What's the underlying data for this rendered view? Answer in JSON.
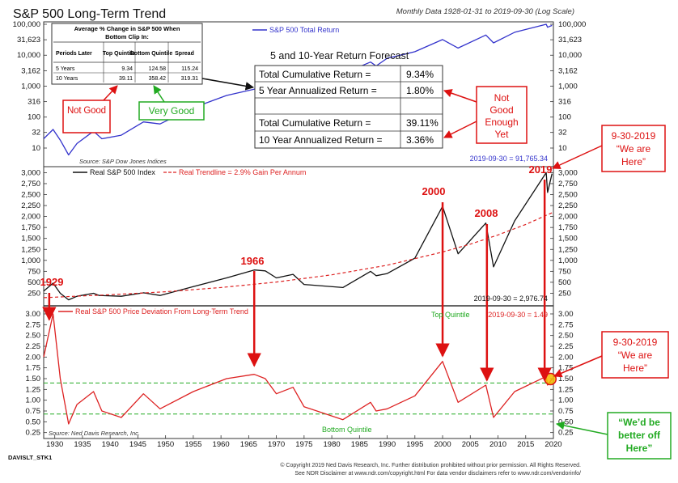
{
  "header": {
    "title": "S&P 500 Long-Term Trend",
    "subtitle": "Monthly Data 1928-01-31 to 2019-09-30 (Log Scale)"
  },
  "chart_data": [
    {
      "type": "line",
      "title": "S&P 500 Total Return",
      "scale": "log",
      "ylim": [
        3,
        100000
      ],
      "ticks": [
        "100,000",
        "31,623",
        "10,000",
        "3,162",
        "1,000",
        "316",
        "100",
        "32",
        "10"
      ],
      "tick_values": [
        100000,
        31623,
        10000,
        3162,
        1000,
        316,
        100,
        32,
        10
      ],
      "series": [
        {
          "name": "S&P 500 Total Return",
          "color": "#3333cc",
          "x": [
            1928,
            1929.7,
            1931,
            1932.5,
            1934,
            1937,
            1938.5,
            1942,
            1946,
            1949,
            1955,
            1961,
            1966,
            1968,
            1970,
            1973,
            1975,
            1980,
            1987,
            1988,
            1990,
            1995,
            2000,
            2002.8,
            2007.8,
            2009.2,
            2013,
            2018.7,
            2018.95,
            2019.75
          ],
          "values": [
            20,
            40,
            18,
            6,
            14,
            35,
            20,
            26,
            70,
            60,
            200,
            500,
            800,
            800,
            700,
            1400,
            900,
            1800,
            6000,
            4500,
            8000,
            13000,
            32000,
            17000,
            45000,
            25000,
            55000,
            100000,
            80000,
            91765
          ]
        }
      ],
      "source": "Source: S&P Dow Jones Indices",
      "end_label": "2019-09-30 = 91,765.34"
    },
    {
      "type": "line",
      "title": "Real S&P 500 Index",
      "ylim": [
        0,
        3100
      ],
      "ticks": [
        "3,000",
        "2,750",
        "2,500",
        "2,250",
        "2,000",
        "1,750",
        "1,500",
        "1,250",
        "1,000",
        "750",
        "500",
        "250"
      ],
      "tick_values": [
        3000,
        2750,
        2500,
        2250,
        2000,
        1750,
        1500,
        1250,
        1000,
        750,
        500,
        250
      ],
      "series": [
        {
          "name": "Real S&P 500 Index",
          "color": "#111111",
          "x": [
            1928,
            1929.7,
            1931,
            1932.5,
            1934,
            1937,
            1938,
            1942,
            1946,
            1949,
            1955,
            1961,
            1966,
            1968,
            1970,
            1973,
            1975,
            1982,
            1987,
            1988,
            1990,
            1995,
            2000,
            2002.8,
            2007.8,
            2009.2,
            2013,
            2018.7,
            2018.95,
            2019.75
          ],
          "values": [
            300,
            480,
            250,
            100,
            180,
            250,
            200,
            180,
            260,
            200,
            400,
            600,
            780,
            760,
            600,
            680,
            450,
            380,
            750,
            650,
            700,
            1050,
            2230,
            1150,
            1850,
            850,
            1900,
            3000,
            2550,
            2976.74
          ]
        },
        {
          "name": "Real Trendline = 2.9% Gain Per Annum",
          "color": "#dd2222",
          "dashed": true,
          "x": [
            1928,
            1940,
            1950,
            1960,
            1970,
            1980,
            1990,
            2000,
            2005,
            2010,
            2015,
            2020
          ],
          "values": [
            150,
            215,
            285,
            380,
            505,
            670,
            890,
            1190,
            1370,
            1580,
            1820,
            2100
          ]
        }
      ],
      "end_label": "2019-09-30 = 2,976.74"
    },
    {
      "type": "line",
      "title": "Real S&P 500 Price Deviation From Long-Term Trend",
      "ylim": [
        0.15,
        3.15
      ],
      "ticks": [
        "3.00",
        "2.75",
        "2.50",
        "2.25",
        "2.00",
        "1.75",
        "1.50",
        "1.25",
        "1.00",
        "0.75",
        "0.50",
        "0.25"
      ],
      "tick_values": [
        3.0,
        2.75,
        2.5,
        2.25,
        2.0,
        1.75,
        1.5,
        1.25,
        1.0,
        0.75,
        0.5,
        0.25
      ],
      "top_quintile": 1.4,
      "bottom_quintile": 0.68,
      "series": [
        {
          "name": "Real S&P 500 Price Deviation From Long-Term Trend",
          "color": "#dd2222",
          "x": [
            1928,
            1929.7,
            1931,
            1932.5,
            1934,
            1937,
            1938.5,
            1942,
            1946,
            1949,
            1955,
            1961,
            1966,
            1968,
            1970,
            1973,
            1975,
            1982,
            1987,
            1988,
            1990,
            1995,
            2000,
            2002.8,
            2007.8,
            2009.2,
            2013,
            2018.7,
            2018.95,
            2019.75
          ],
          "values": [
            2.0,
            3.0,
            1.5,
            0.45,
            0.9,
            1.2,
            0.75,
            0.6,
            1.15,
            0.8,
            1.2,
            1.5,
            1.6,
            1.5,
            1.15,
            1.3,
            0.85,
            0.55,
            0.95,
            0.75,
            0.8,
            1.1,
            1.9,
            0.95,
            1.35,
            0.6,
            1.2,
            1.55,
            1.35,
            1.49
          ]
        }
      ],
      "end_label": "2019-09-30 = 1.49",
      "top_quintile_label": "Top Quintile",
      "bottom_quintile_label": "Bottom Quintile",
      "source": "Source: Ned Davis Research, Inc."
    }
  ],
  "xaxis": {
    "range": [
      1928,
      2020
    ],
    "ticks": [
      "1930",
      "1935",
      "1940",
      "1945",
      "1950",
      "1955",
      "1960",
      "1965",
      "1970",
      "1975",
      "1980",
      "1985",
      "1990",
      "1995",
      "2000",
      "2005",
      "2010",
      "2015",
      "2020"
    ],
    "tick_values": [
      1930,
      1935,
      1940,
      1945,
      1950,
      1955,
      1960,
      1965,
      1970,
      1975,
      1980,
      1985,
      1990,
      1995,
      2000,
      2005,
      2010,
      2015,
      2020
    ]
  },
  "avg_change_table": {
    "title1": "Average % Change in S&P 500 When",
    "title2": "Bottom Clip In:",
    "headers": [
      "Periods Later",
      "Top Quintile",
      "Bottom Quintile",
      "Spread"
    ],
    "rows": [
      [
        "5 Years",
        "9.34",
        "124.58",
        "115.24"
      ],
      [
        "10 Years",
        "39.11",
        "358.42",
        "319.31"
      ]
    ]
  },
  "forecast": {
    "title": "5 and 10-Year Return Forecast",
    "rows": [
      [
        "Total Cumulative Return =",
        "9.34%"
      ],
      [
        "5 Year Annualized Return =",
        "1.80%"
      ],
      [
        "",
        ""
      ],
      [
        "Total Cumulative Return =",
        "39.11%"
      ],
      [
        "10 Year Annualized Return =",
        "3.36%"
      ]
    ]
  },
  "callouts": {
    "not_good": "Not Good",
    "very_good": "Very Good",
    "not_good_enough": [
      "Not",
      "Good",
      "Enough",
      "Yet"
    ],
    "we_are_here_top": [
      "9-30-2019",
      "“We are",
      "Here”"
    ],
    "we_are_here_bottom": [
      "9-30-2019",
      "“We are",
      "Here”"
    ],
    "better_off": [
      "“We’d be",
      "better off",
      "Here”"
    ]
  },
  "year_labels": [
    "1929",
    "1966",
    "2000",
    "2008",
    "2019"
  ],
  "footer": {
    "id": "DAVISLT_STK1",
    "line1": "© Copyright 2019 Ned Davis Research, Inc. Further distribution prohibited without prior permission. All Rights Reserved.",
    "line2": "See NDR Disclaimer at www.ndr.com/copyright.html   For data vendor disclaimers refer to www.ndr.com/vendorinfo/"
  },
  "colors": {
    "total_return": "#3333cc",
    "real_index": "#111111",
    "trend": "#dd2222",
    "deviation": "#dd2222",
    "quintile": "#22aa22",
    "callout_red": "#dd1111",
    "callout_green": "#22aa22"
  }
}
